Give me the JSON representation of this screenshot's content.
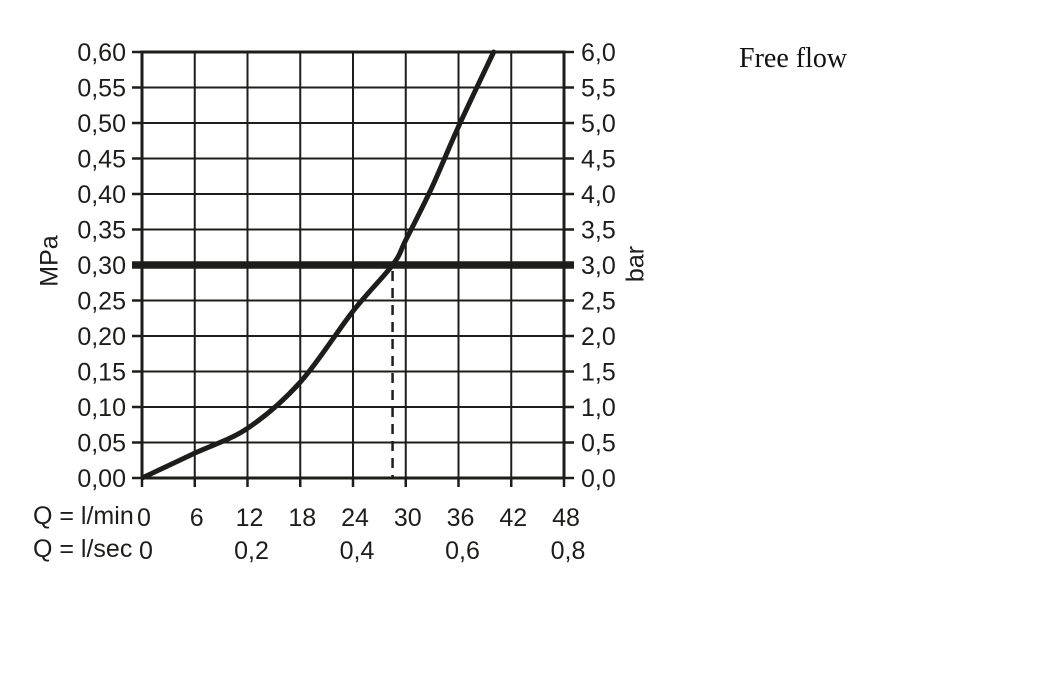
{
  "title": "Free flow",
  "chart_data": {
    "type": "line",
    "title": "Free flow",
    "ylabel_left": "MPa",
    "ylabel_right": "bar",
    "xlabel_min": "Q = l/min",
    "xlabel_sec": "Q = l/sec",
    "x_range_lmin": [
      0,
      48
    ],
    "y_range_mpa": [
      0.0,
      0.6
    ],
    "y_range_bar": [
      0.0,
      6.0
    ],
    "grid": true,
    "line_color": "#1d1d1b",
    "x_ticks_lmin": [
      {
        "label": "0",
        "q": 0
      },
      {
        "label": "6",
        "q": 6
      },
      {
        "label": "12",
        "q": 12
      },
      {
        "label": "18",
        "q": 18
      },
      {
        "label": "24",
        "q": 24
      },
      {
        "label": "30",
        "q": 30
      },
      {
        "label": "36",
        "q": 36
      },
      {
        "label": "42",
        "q": 42
      },
      {
        "label": "48",
        "q": 48
      }
    ],
    "x_ticks_lsec": [
      {
        "label": "0",
        "q": 0
      },
      {
        "label": "0,2",
        "q": 12
      },
      {
        "label": "0,4",
        "q": 24
      },
      {
        "label": "0,6",
        "q": 36
      },
      {
        "label": "0,8",
        "q": 48
      }
    ],
    "y_ticks_mpa_top_to_bottom": [
      "0,60",
      "0,55",
      "0,50",
      "0,45",
      "0,40",
      "0,35",
      "0,30",
      "0,25",
      "0,20",
      "0,15",
      "0,10",
      "0,05",
      "0,00"
    ],
    "y_ticks_bar_top_to_bottom": [
      "6,0",
      "5,5",
      "5,0",
      "4,5",
      "4,0",
      "3,5",
      "3,0",
      "2,5",
      "2,0",
      "1,5",
      "1,0",
      "0,5",
      "0,0"
    ],
    "curve_points_lmin_mpa": [
      [
        0,
        0.0
      ],
      [
        6,
        0.035
      ],
      [
        12,
        0.07
      ],
      [
        18,
        0.135
      ],
      [
        24,
        0.235
      ],
      [
        28.5,
        0.3
      ],
      [
        30,
        0.335
      ],
      [
        33,
        0.41
      ],
      [
        36,
        0.495
      ],
      [
        40,
        0.6
      ]
    ],
    "reference_line_mpa": 0.3,
    "reference_line_bar": 3.0,
    "dashed_guide_lmin": 28.5
  }
}
